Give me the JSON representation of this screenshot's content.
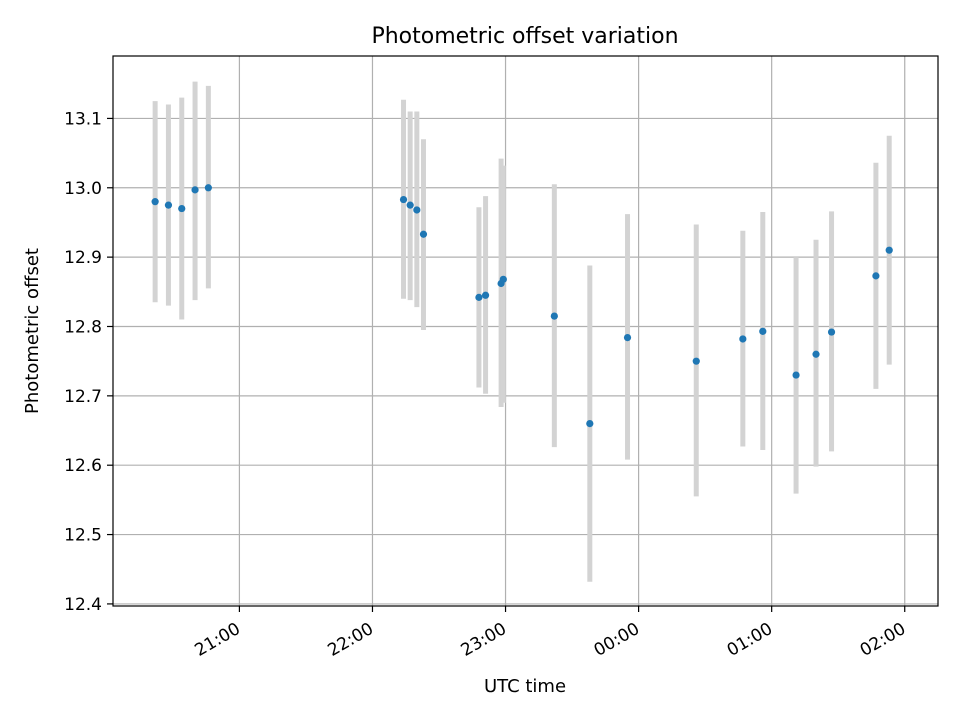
{
  "chart_data": {
    "type": "scatter",
    "title": "Photometric offset variation",
    "xlabel": "UTC time",
    "ylabel": "Photometric offset",
    "x_unit": "UTC time (HH:MM), day 1 evening to day 2 early morning",
    "x_ticks": [
      "21:00",
      "22:00",
      "23:00",
      "00:00",
      "01:00",
      "02:00"
    ],
    "y_ticks": [
      "12.4",
      "12.5",
      "12.6",
      "12.7",
      "12.8",
      "12.9",
      "13.0",
      "13.1"
    ],
    "xlim": [
      "20:03",
      "02:15"
    ],
    "ylim": [
      12.397,
      13.19
    ],
    "grid": true,
    "colors": {
      "points": "#1f77b4",
      "errorbars": "#d3d3d3",
      "grid": "#b0b0b0"
    },
    "series": [
      {
        "x": [
          "20:22",
          "20:28",
          "20:34",
          "20:40",
          "20:46",
          "22:14",
          "22:17",
          "22:20",
          "22:23",
          "22:48",
          "22:51",
          "22:58",
          "22:59",
          "23:22",
          "23:38",
          "23:55",
          "00:26",
          "00:47",
          "00:56",
          "01:11",
          "01:20",
          "01:27",
          "01:47",
          "01:53"
        ],
        "y": [
          12.98,
          12.975,
          12.97,
          12.997,
          13.0,
          12.983,
          12.975,
          12.968,
          12.933,
          12.842,
          12.845,
          12.862,
          12.868,
          12.815,
          12.66,
          12.784,
          12.75,
          12.782,
          12.793,
          12.73,
          12.76,
          12.792,
          12.873,
          12.91
        ],
        "yerr_low": [
          12.835,
          12.83,
          12.81,
          12.838,
          12.855,
          12.84,
          12.838,
          12.828,
          12.795,
          12.712,
          12.703,
          12.684,
          12.69,
          12.626,
          12.432,
          12.608,
          12.555,
          12.627,
          12.622,
          12.559,
          12.598,
          12.62,
          12.71,
          12.745
        ],
        "yerr_high": [
          13.125,
          13.12,
          13.13,
          13.153,
          13.147,
          13.127,
          13.11,
          13.11,
          13.07,
          12.972,
          12.988,
          13.042,
          13.032,
          13.005,
          12.888,
          12.962,
          12.947,
          12.938,
          12.965,
          12.9,
          12.925,
          12.966,
          13.036,
          13.075
        ]
      }
    ]
  }
}
